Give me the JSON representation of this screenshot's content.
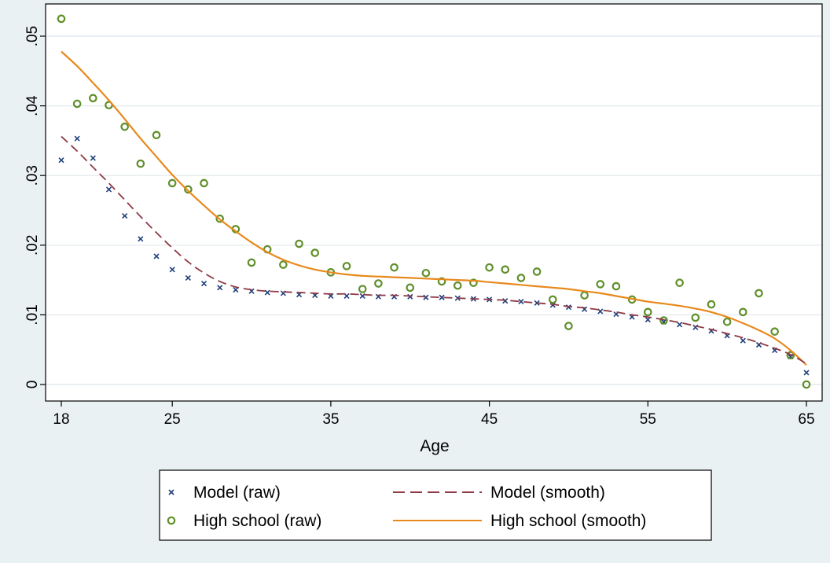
{
  "chart_data": {
    "type": "scatter",
    "title": "",
    "xlabel": "Age",
    "ylabel": "",
    "xlim": [
      18,
      65
    ],
    "ylim": [
      0,
      0.05
    ],
    "xticks": [
      18,
      25,
      35,
      45,
      55,
      65
    ],
    "xtick_labels": [
      "18",
      "25",
      "35",
      "45",
      "55",
      "65"
    ],
    "yticks": [
      0,
      0.01,
      0.02,
      0.03,
      0.04,
      0.05
    ],
    "ytick_labels": [
      "0",
      ".01",
      ".02",
      ".03",
      ".04",
      ".05"
    ],
    "grid": "horizontal",
    "legend_position": "bottom",
    "colors": {
      "background": "#eaf1f3",
      "plot": "#ffffff",
      "grid": "#e4ecee",
      "model_raw": "#1f3f7a",
      "model_smooth": "#8e3a45",
      "hs_raw": "#5f8f2a",
      "hs_smooth": "#e8891c"
    },
    "series": [
      {
        "name": "Model (raw)",
        "kind": "scatter",
        "marker": "x",
        "x": [
          18,
          19,
          20,
          21,
          22,
          23,
          24,
          25,
          26,
          27,
          28,
          29,
          30,
          31,
          32,
          33,
          34,
          35,
          36,
          37,
          38,
          39,
          40,
          41,
          42,
          43,
          44,
          45,
          46,
          47,
          48,
          49,
          50,
          51,
          52,
          53,
          54,
          55,
          56,
          57,
          58,
          59,
          60,
          61,
          62,
          63,
          64,
          65
        ],
        "y": [
          0.0322,
          0.0353,
          0.0325,
          0.028,
          0.0242,
          0.0209,
          0.0184,
          0.0165,
          0.0153,
          0.0145,
          0.0139,
          0.0136,
          0.0134,
          0.0132,
          0.0131,
          0.0129,
          0.0128,
          0.0127,
          0.0127,
          0.0127,
          0.0126,
          0.0126,
          0.0126,
          0.0125,
          0.0125,
          0.0124,
          0.0123,
          0.0122,
          0.012,
          0.0119,
          0.0117,
          0.0114,
          0.0111,
          0.0108,
          0.0105,
          0.0101,
          0.0097,
          0.0093,
          0.009,
          0.0086,
          0.0082,
          0.0077,
          0.007,
          0.0063,
          0.0057,
          0.0049,
          0.004,
          0.0017
        ]
      },
      {
        "name": "High school (raw)",
        "kind": "scatter",
        "marker": "circle",
        "x": [
          18,
          19,
          20,
          21,
          22,
          23,
          24,
          25,
          26,
          27,
          28,
          29,
          30,
          31,
          32,
          33,
          34,
          35,
          36,
          37,
          38,
          39,
          40,
          41,
          42,
          43,
          44,
          45,
          46,
          47,
          48,
          49,
          50,
          51,
          52,
          53,
          54,
          55,
          56,
          57,
          58,
          59,
          60,
          61,
          62,
          63,
          64,
          65
        ],
        "y": [
          0.0525,
          0.0403,
          0.0411,
          0.0401,
          0.037,
          0.0317,
          0.0358,
          0.0289,
          0.028,
          0.0289,
          0.0238,
          0.0223,
          0.0175,
          0.0194,
          0.0172,
          0.0202,
          0.0189,
          0.0161,
          0.017,
          0.0137,
          0.0145,
          0.0168,
          0.0139,
          0.016,
          0.0148,
          0.0142,
          0.0146,
          0.0168,
          0.0165,
          0.0153,
          0.0162,
          0.0122,
          0.0084,
          0.0128,
          0.0144,
          0.0141,
          0.0122,
          0.0104,
          0.0092,
          0.0146,
          0.0096,
          0.0115,
          0.009,
          0.0104,
          0.0131,
          0.0076,
          0.0042,
          0.0
        ]
      },
      {
        "name": "Model (smooth)",
        "kind": "line",
        "dash": "dashed",
        "x": [
          18,
          19,
          20,
          21,
          22,
          23,
          24,
          25,
          26,
          27,
          28,
          29,
          30,
          31,
          32,
          33,
          34,
          35,
          36,
          37,
          38,
          39,
          40,
          41,
          42,
          43,
          44,
          45,
          46,
          47,
          48,
          49,
          50,
          51,
          52,
          53,
          54,
          55,
          56,
          57,
          58,
          59,
          60,
          61,
          62,
          63,
          64,
          65
        ],
        "y": [
          0.0356,
          0.0335,
          0.0312,
          0.0289,
          0.0265,
          0.0241,
          0.0218,
          0.0196,
          0.0176,
          0.016,
          0.0148,
          0.014,
          0.0136,
          0.0134,
          0.0133,
          0.0132,
          0.0131,
          0.013,
          0.013,
          0.0129,
          0.0128,
          0.0128,
          0.0127,
          0.0126,
          0.0125,
          0.0124,
          0.0123,
          0.0122,
          0.0121,
          0.0119,
          0.0117,
          0.0115,
          0.0112,
          0.011,
          0.0107,
          0.0104,
          0.01,
          0.0097,
          0.0093,
          0.0089,
          0.0084,
          0.0079,
          0.0073,
          0.0067,
          0.006,
          0.0052,
          0.0043,
          0.003
        ]
      },
      {
        "name": "High school (smooth)",
        "kind": "line",
        "dash": "solid",
        "x": [
          18,
          19,
          20,
          21,
          22,
          23,
          24,
          25,
          26,
          27,
          28,
          29,
          30,
          31,
          32,
          33,
          34,
          35,
          36,
          37,
          38,
          39,
          40,
          41,
          42,
          43,
          44,
          45,
          46,
          47,
          48,
          49,
          50,
          51,
          52,
          53,
          54,
          55,
          56,
          57,
          58,
          59,
          60,
          61,
          62,
          63,
          64,
          65
        ],
        "y": [
          0.0478,
          0.0457,
          0.0433,
          0.0408,
          0.0381,
          0.0353,
          0.0327,
          0.0301,
          0.0278,
          0.0257,
          0.0237,
          0.022,
          0.0204,
          0.019,
          0.0179,
          0.0171,
          0.0165,
          0.0161,
          0.0158,
          0.0156,
          0.0155,
          0.0154,
          0.0153,
          0.0152,
          0.0151,
          0.015,
          0.0149,
          0.0147,
          0.0145,
          0.0143,
          0.0141,
          0.0139,
          0.0137,
          0.0134,
          0.0131,
          0.0127,
          0.0123,
          0.0119,
          0.0116,
          0.0113,
          0.0109,
          0.0104,
          0.0097,
          0.0088,
          0.0078,
          0.0066,
          0.0049,
          0.0028
        ]
      }
    ],
    "legend": {
      "entries": [
        {
          "label": "Model (raw)",
          "series": 0
        },
        {
          "label": "Model (smooth)",
          "series": 2
        },
        {
          "label": "High school (raw)",
          "series": 1
        },
        {
          "label": "High school (smooth)",
          "series": 3
        }
      ]
    }
  }
}
